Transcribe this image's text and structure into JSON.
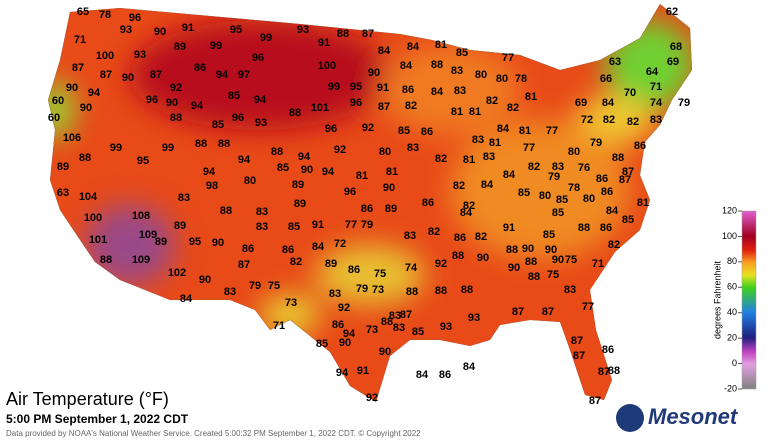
{
  "title": "Air Temperature (°F)",
  "subtitle": "5:00 PM September 1, 2022 CDT",
  "credit": "Data provided by NOAA's National Weather Service. Created 5:00:32 PM September 1, 2022 CDT. © Copyright 2022",
  "logo": "Mesonet",
  "colorbar": {
    "label": "degrees Fahrenheit",
    "ticks": [
      120,
      100,
      80,
      60,
      40,
      20,
      0,
      -20
    ],
    "range": [
      -20,
      120
    ]
  },
  "readings": [
    65,
    78,
    96,
    90,
    91,
    95,
    99,
    93,
    88,
    87,
    81,
    85,
    77,
    62,
    71,
    93,
    99,
    91,
    84,
    84,
    68,
    63,
    69,
    64,
    100,
    93,
    89,
    96,
    100,
    90,
    84,
    88,
    83,
    80,
    80,
    78,
    66,
    87,
    87,
    90,
    87,
    86,
    94,
    97,
    70,
    71,
    90,
    92,
    99,
    95,
    91,
    86,
    84,
    83,
    82,
    81,
    60,
    94,
    96,
    90,
    94,
    85,
    94,
    88,
    101,
    96,
    87,
    82,
    82,
    69,
    74,
    79,
    90,
    88,
    85,
    96,
    93,
    60,
    81,
    81,
    72,
    82,
    82,
    83,
    84,
    106,
    99,
    99,
    88,
    88,
    96,
    92,
    85,
    86,
    84,
    81,
    77,
    86,
    88,
    88,
    94,
    92,
    80,
    83,
    83,
    81,
    80,
    79,
    88,
    89,
    95,
    94,
    85,
    90,
    94,
    81,
    82,
    81,
    83,
    77,
    82,
    83,
    76,
    87,
    63,
    94,
    98,
    80,
    89,
    81,
    90,
    82,
    84,
    84,
    79,
    86,
    87,
    104,
    83,
    96,
    86,
    82,
    85,
    80,
    85,
    78,
    86,
    80,
    100,
    108,
    88,
    83,
    89,
    86,
    89,
    84,
    85,
    84,
    81,
    85,
    89,
    83,
    85,
    91,
    77,
    79,
    83,
    82,
    91,
    88,
    86,
    101,
    109,
    89,
    95,
    90,
    86,
    84,
    72,
    86,
    82,
    85,
    90,
    90,
    82,
    88,
    109,
    87,
    82,
    86,
    89,
    86,
    74,
    75,
    92,
    88,
    90,
    88,
    90,
    88,
    90,
    75,
    71,
    102,
    90,
    79,
    73,
    88,
    88,
    88,
    88,
    75,
    83,
    84,
    83,
    79,
    75,
    83,
    73,
    92,
    87,
    93,
    83,
    85,
    93,
    87,
    87,
    77,
    71,
    86,
    94,
    73,
    85,
    90,
    90,
    87,
    87,
    86,
    84,
    86,
    84,
    94,
    91,
    87,
    88,
    92,
    87,
    88,
    83
  ]
}
